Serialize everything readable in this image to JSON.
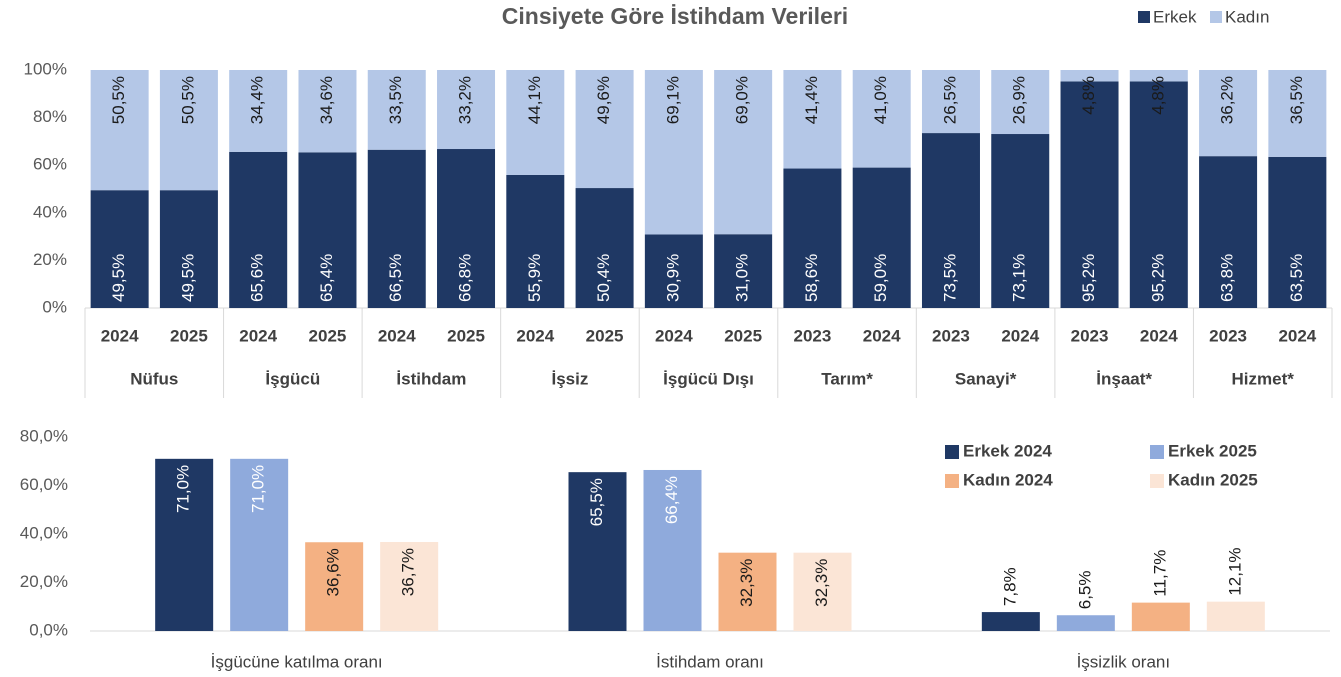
{
  "chart_data": [
    {
      "type": "stacked_bar",
      "title": "Cinsiyete Göre İstihdam Verileri",
      "categories": [
        "2024",
        "2025",
        "2024",
        "2025",
        "2024",
        "2025",
        "2024",
        "2025",
        "2024",
        "2025",
        "2023",
        "2024",
        "2023",
        "2024",
        "2023",
        "2024",
        "2023",
        "2024"
      ],
      "groups": [
        "Nüfus",
        "İşgücü",
        "İstihdam",
        "İşsiz",
        "İşgücü Dışı",
        "Tarım*",
        "Sanayi*",
        "İnşaat*",
        "Hizmet*"
      ],
      "series": [
        {
          "name": "Erkek",
          "color": "#1f3864",
          "values": [
            49.5,
            49.5,
            65.6,
            65.4,
            66.5,
            66.8,
            55.9,
            50.4,
            30.9,
            31.0,
            58.6,
            59.0,
            73.5,
            73.1,
            95.2,
            95.2,
            63.8,
            63.5
          ],
          "value_labels": [
            "49,5%",
            "49,5%",
            "65,6%",
            "65,4%",
            "66,5%",
            "66,8%",
            "55,9%",
            "50,4%",
            "30,9%",
            "31,0%",
            "58,6%",
            "59,0%",
            "73,5%",
            "73,1%",
            "95,2%",
            "95,2%",
            "63,8%",
            "63,5%"
          ]
        },
        {
          "name": "Kadın",
          "color": "#b4c7e7",
          "values": [
            50.5,
            50.5,
            34.4,
            34.6,
            33.5,
            33.2,
            44.1,
            49.6,
            69.1,
            69.0,
            41.4,
            41.0,
            26.5,
            26.9,
            4.8,
            4.8,
            36.2,
            36.5
          ],
          "value_labels": [
            "50,5%",
            "50,5%",
            "34,4%",
            "34,6%",
            "33,5%",
            "33,2%",
            "44,1%",
            "49,6%",
            "69,1%",
            "69,0%",
            "41,4%",
            "41,0%",
            "26,5%",
            "26,9%",
            "4,8%",
            "4,8%",
            "36,2%",
            "36,5%"
          ]
        }
      ],
      "ylim": [
        0,
        100
      ],
      "yticks": [
        {
          "value": 0,
          "label": "0%"
        },
        {
          "value": 20,
          "label": "20%"
        },
        {
          "value": 40,
          "label": "40%"
        },
        {
          "value": 60,
          "label": "60%"
        },
        {
          "value": 80,
          "label": "80%"
        },
        {
          "value": 100,
          "label": "100%"
        }
      ],
      "grid": false,
      "legend": "top-right"
    },
    {
      "type": "bar",
      "categories": [
        "İşgücüne katılma oranı",
        "İstihdam oranı",
        "İşsizlik oranı"
      ],
      "series": [
        {
          "name": "Erkek 2024",
          "color": "#1f3864",
          "values": [
            71.0,
            65.5,
            7.8
          ],
          "value_labels": [
            "71,0%",
            "65,5%",
            "7,8%"
          ]
        },
        {
          "name": "Erkek 2025",
          "color": "#8faadc",
          "values": [
            71.0,
            66.4,
            6.5
          ],
          "value_labels": [
            "71,0%",
            "66,4%",
            "6,5%"
          ]
        },
        {
          "name": "Kadın 2024",
          "color": "#f4b183",
          "values": [
            36.6,
            32.3,
            11.7
          ],
          "value_labels": [
            "36,6%",
            "32,3%",
            "11,7%"
          ]
        },
        {
          "name": "Kadın 2025",
          "color": "#fbe5d6",
          "values": [
            36.7,
            32.3,
            12.1
          ],
          "value_labels": [
            "36,7%",
            "32,3%",
            "12,1%"
          ]
        }
      ],
      "ylim": [
        0,
        80
      ],
      "yticks": [
        {
          "value": 0,
          "label": "0,0%"
        },
        {
          "value": 20,
          "label": "20,0%"
        },
        {
          "value": 40,
          "label": "40,0%"
        },
        {
          "value": 60,
          "label": "60,0%"
        },
        {
          "value": 80,
          "label": "80,0%"
        }
      ],
      "grid": false,
      "legend": "top-right"
    }
  ]
}
